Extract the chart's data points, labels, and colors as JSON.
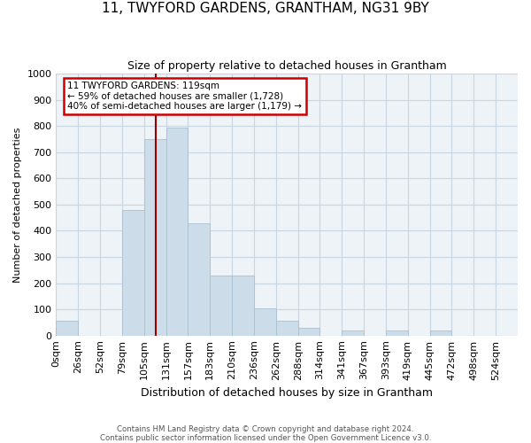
{
  "title": "11, TWYFORD GARDENS, GRANTHAM, NG31 9BY",
  "subtitle": "Size of property relative to detached houses in Grantham",
  "xlabel": "Distribution of detached houses by size in Grantham",
  "ylabel": "Number of detached properties",
  "footer_line1": "Contains HM Land Registry data © Crown copyright and database right 2024.",
  "footer_line2": "Contains public sector information licensed under the Open Government Licence v3.0.",
  "bar_labels": [
    "0sqm",
    "26sqm",
    "52sqm",
    "79sqm",
    "105sqm",
    "131sqm",
    "157sqm",
    "183sqm",
    "210sqm",
    "236sqm",
    "262sqm",
    "288sqm",
    "314sqm",
    "341sqm",
    "367sqm",
    "393sqm",
    "419sqm",
    "445sqm",
    "472sqm",
    "498sqm",
    "524sqm"
  ],
  "bar_values": [
    55,
    0,
    0,
    480,
    750,
    795,
    430,
    230,
    230,
    105,
    55,
    30,
    0,
    20,
    0,
    20,
    0,
    20,
    0,
    0,
    0
  ],
  "bar_color": "#ccdce8",
  "bar_edgecolor": "#a8c0d0",
  "vline_color": "#990000",
  "annotation_text": "11 TWYFORD GARDENS: 119sqm\n← 59% of detached houses are smaller (1,728)\n40% of semi-detached houses are larger (1,179) →",
  "annotation_box_color": "#ffffff",
  "annotation_box_edgecolor": "#cc0000",
  "ylim": [
    0,
    1000
  ],
  "background_color": "#ffffff",
  "plot_bg_color": "#eef3f8",
  "grid_color": "#c8d4e0"
}
